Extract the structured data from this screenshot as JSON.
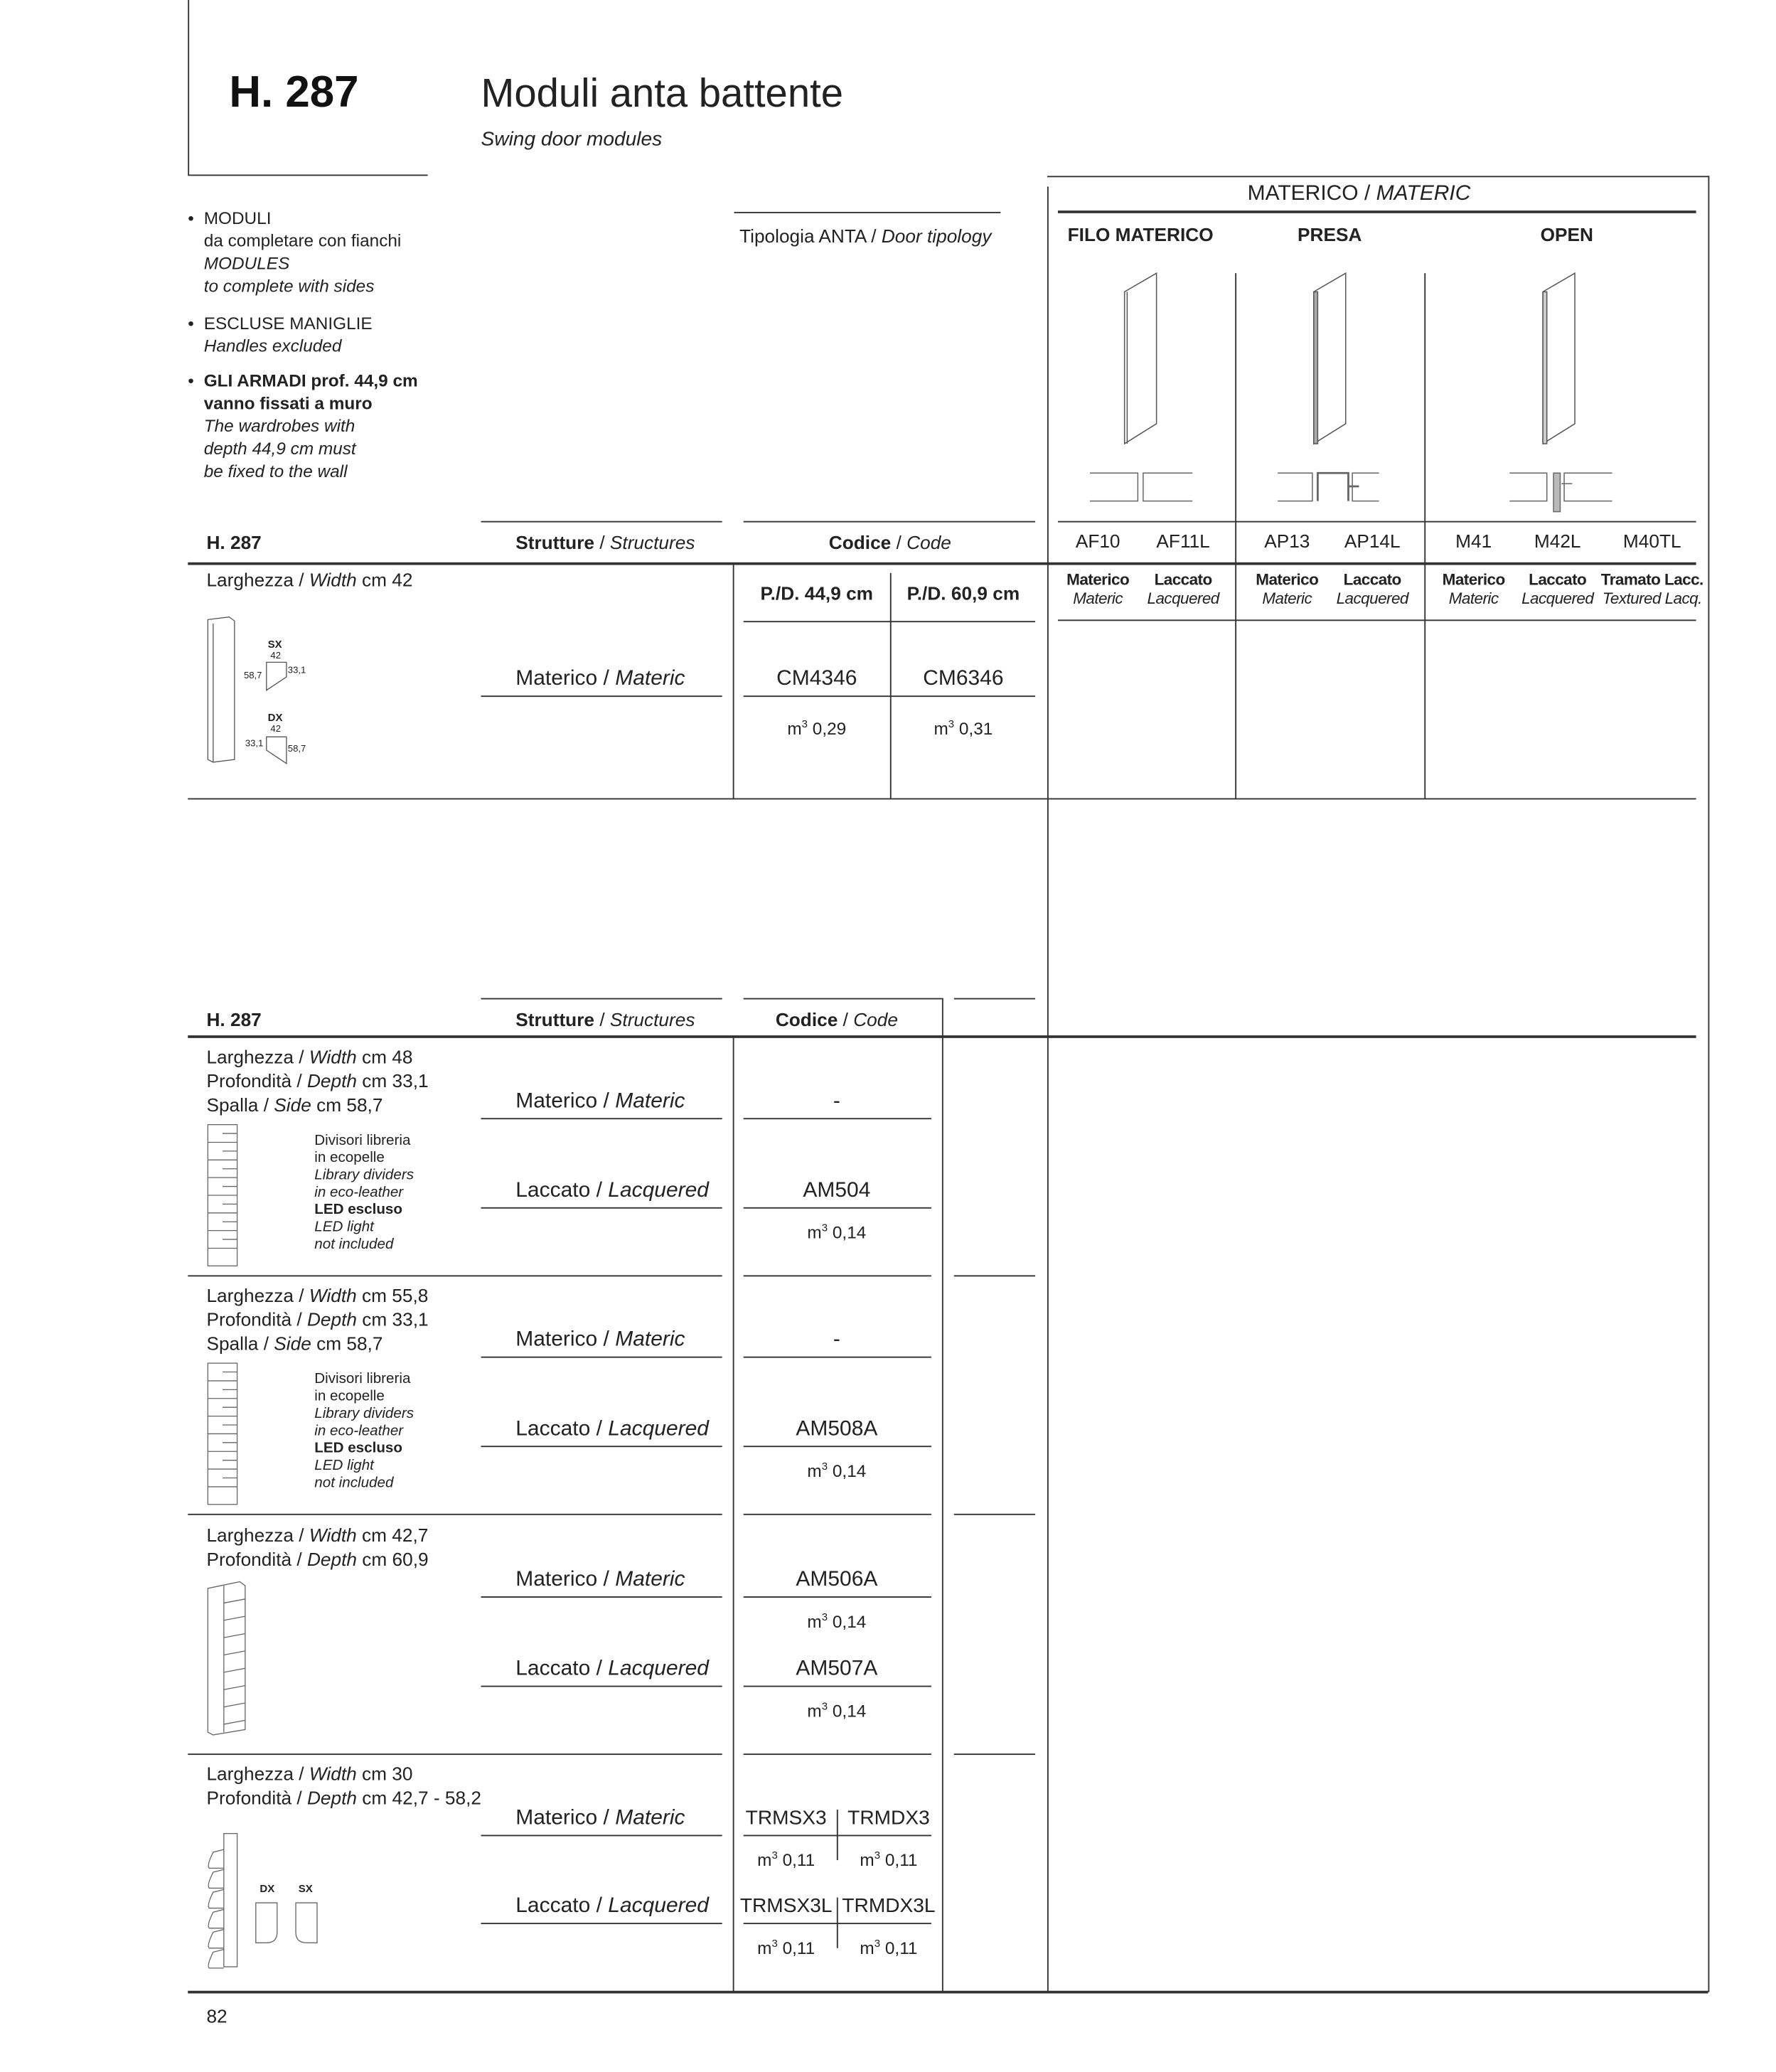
{
  "header": {
    "code": "H. 287",
    "title": "Moduli anta battente",
    "subtitle": "Swing door modules"
  },
  "notes": [
    {
      "title": "MODULI",
      "text": "da completare con fianchi",
      "en": [
        "MODULES",
        "to complete with sides"
      ]
    },
    {
      "title": "ESCLUSE MANIGLIE",
      "en": [
        "Handles excluded"
      ]
    },
    {
      "title": [
        "GLI ARMADI prof. 44,9 cm",
        "vanno fissati a muro"
      ],
      "en": [
        "The wardrobes with",
        "depth 44,9 cm must",
        "be fixed to the wall"
      ]
    }
  ],
  "sep": " / ",
  "door_type": {
    "label": "Tipologia ANTA",
    "label_en": "Door tipology"
  },
  "materic": {
    "title": "MATERICO",
    "title_en": "MATERIC",
    "groups": [
      {
        "name": "FILO MATERICO",
        "codes": [
          {
            "code": "AF10",
            "finish": "Materico",
            "finish_en": "Materic"
          },
          {
            "code": "AF11L",
            "finish": "Laccato",
            "finish_en": "Lacquered"
          }
        ]
      },
      {
        "name": "PRESA",
        "codes": [
          {
            "code": "AP13",
            "finish": "Materico",
            "finish_en": "Materic"
          },
          {
            "code": "AP14L",
            "finish": "Laccato",
            "finish_en": "Lacquered"
          }
        ]
      },
      {
        "name": "OPEN",
        "codes": [
          {
            "code": "M41",
            "finish": "Materico",
            "finish_en": "Materic"
          },
          {
            "code": "M42L",
            "finish": "Laccato",
            "finish_en": "Lacquered"
          },
          {
            "code": "M40TL",
            "finish": "Tramato Lacc.",
            "finish_en": "Textured Lacq."
          }
        ]
      }
    ]
  },
  "labels": {
    "h": "H. 287",
    "structures": "Strutture",
    "structures_en": "Structures",
    "code": "Codice",
    "code_en": "Code",
    "width": "Larghezza",
    "width_en": "Width",
    "depth": "Profondità",
    "depth_en": "Depth",
    "side": "Spalla",
    "side_en": "Side",
    "materico": "Materico",
    "materic": "Materic",
    "laccato": "Laccato",
    "lacquered": "Lacquered",
    "m": "m",
    "cube": "3"
  },
  "table1": {
    "width": "cm 42",
    "depths": [
      "P./D. 44,9 cm",
      "P./D. 60,9 cm"
    ],
    "codes": [
      "CM4346",
      "CM6346"
    ],
    "volumes": [
      "0,29",
      "0,31"
    ],
    "dims": {
      "sx": "SX",
      "dx": "DX",
      "w": "42",
      "a": "58,7",
      "b": "33,1"
    }
  },
  "table2": {
    "rows": [
      {
        "width": "cm 48",
        "depth": "cm 33,1",
        "side": "cm 58,7",
        "materic_code": "-",
        "lacq_code": "AM504",
        "lacq_vol": "0,14",
        "note": {
          "it": [
            "Divisori libreria",
            "in ecopelle"
          ],
          "en": [
            "Library dividers",
            "in eco-leather"
          ],
          "led": "LED escluso",
          "led_en": [
            "LED light",
            "not included"
          ]
        }
      },
      {
        "width": "cm 55,8",
        "depth": "cm 33,1",
        "side": "cm 58,7",
        "materic_code": "-",
        "lacq_code": "AM508A",
        "lacq_vol": "0,14",
        "note": {
          "it": [
            "Divisori libreria",
            "in ecopelle"
          ],
          "en": [
            "Library dividers",
            "in eco-leather"
          ],
          "led": "LED escluso",
          "led_en": [
            "LED light",
            "not included"
          ]
        }
      },
      {
        "width": "cm 42,7",
        "depth": "cm 60,9",
        "materic_code": "AM506A",
        "materic_vol": "0,14",
        "lacq_code": "AM507A",
        "lacq_vol": "0,14"
      },
      {
        "width": "cm 30",
        "depth": "cm 42,7 - 58,2",
        "materic_codes": [
          "TRMSX3",
          "TRMDX3"
        ],
        "materic_vols": [
          "0,11",
          "0,11"
        ],
        "lacq_codes": [
          "TRMSX3L",
          "TRMDX3L"
        ],
        "lacq_vols": [
          "0,11",
          "0,11"
        ],
        "dx": "DX",
        "sx": "SX"
      }
    ]
  },
  "page_number": "82"
}
